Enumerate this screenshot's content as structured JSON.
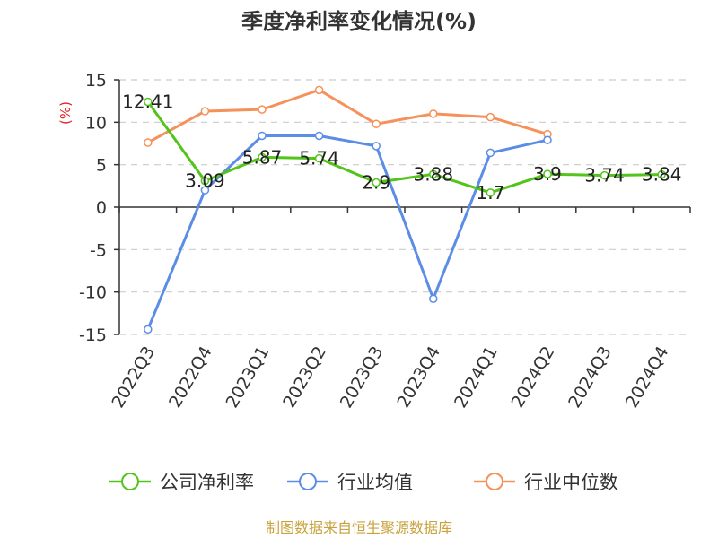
{
  "chart_data": {
    "type": "line",
    "title": "季度净利率变化情况(%)",
    "ylabel": "(%)",
    "categories": [
      "2022Q3",
      "2022Q4",
      "2023Q1",
      "2023Q2",
      "2023Q3",
      "2023Q4",
      "2024Q1",
      "2024Q2",
      "2024Q3",
      "2024Q4"
    ],
    "ylim": [
      -15,
      15
    ],
    "yticks": [
      15,
      10,
      5,
      0,
      -5,
      -10,
      -15
    ],
    "grid": true,
    "legend_position": "bottom",
    "series": [
      {
        "name": "公司净利率",
        "color": "#52c41a",
        "values": [
          12.41,
          3.09,
          5.87,
          5.74,
          2.9,
          3.88,
          1.7,
          3.9,
          3.74,
          3.84
        ],
        "labels": [
          "12.41",
          "3.09",
          "5.87",
          "5.74",
          "2.9",
          "3.88",
          "1.7",
          "3.9",
          "3.74",
          "3.84"
        ]
      },
      {
        "name": "行业均值",
        "color": "#5b8ce6",
        "values": [
          -14.4,
          2.0,
          8.4,
          8.4,
          7.2,
          -10.8,
          6.4,
          7.9,
          null,
          null
        ]
      },
      {
        "name": "行业中位数",
        "color": "#f5915a",
        "values": [
          7.6,
          11.3,
          11.5,
          13.8,
          9.8,
          11.0,
          10.6,
          8.6,
          null,
          null
        ]
      }
    ]
  },
  "footer": {
    "source": "制图数据来自恒生聚源数据库",
    "source_color": "#c8a23c"
  }
}
